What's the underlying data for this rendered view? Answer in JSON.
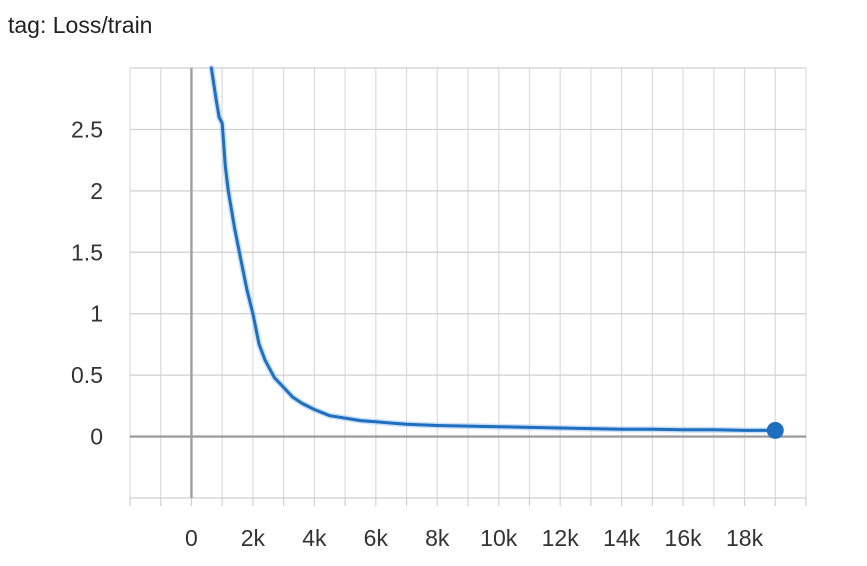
{
  "chart_title": "tag: Loss/train",
  "chart_data": {
    "type": "line",
    "title": "tag: Loss/train",
    "xlabel": "",
    "ylabel": "",
    "xlim": [
      -2000,
      20000
    ],
    "ylim": [
      -0.5,
      3.0
    ],
    "grid": true,
    "legend": "none",
    "x_ticks": [
      0,
      2000,
      4000,
      6000,
      8000,
      10000,
      12000,
      14000,
      16000,
      18000
    ],
    "x_tick_labels": [
      "0",
      "2k",
      "4k",
      "6k",
      "8k",
      "10k",
      "12k",
      "14k",
      "16k",
      "18k"
    ],
    "y_ticks": [
      0,
      0.5,
      1,
      1.5,
      2,
      2.5
    ],
    "y_tick_labels": [
      "0",
      "0.5",
      "1",
      "1.5",
      "2",
      "2.5"
    ],
    "series": [
      {
        "color": "#1f6fc1",
        "x": [
          650,
          800,
          900,
          1000,
          1100,
          1200,
          1400,
          1600,
          1800,
          2000,
          2200,
          2400,
          2700,
          3000,
          3300,
          3600,
          4000,
          4500,
          5000,
          5500,
          6000,
          7000,
          8000,
          9000,
          10000,
          11000,
          12000,
          13000,
          14000,
          15000,
          16000,
          17000,
          18000,
          19000
        ],
        "y": [
          3.0,
          2.75,
          2.6,
          2.55,
          2.2,
          2.0,
          1.7,
          1.45,
          1.2,
          1.0,
          0.75,
          0.62,
          0.48,
          0.4,
          0.32,
          0.27,
          0.22,
          0.17,
          0.15,
          0.13,
          0.12,
          0.1,
          0.09,
          0.085,
          0.08,
          0.075,
          0.07,
          0.065,
          0.06,
          0.06,
          0.055,
          0.055,
          0.05,
          0.05
        ]
      }
    ]
  }
}
